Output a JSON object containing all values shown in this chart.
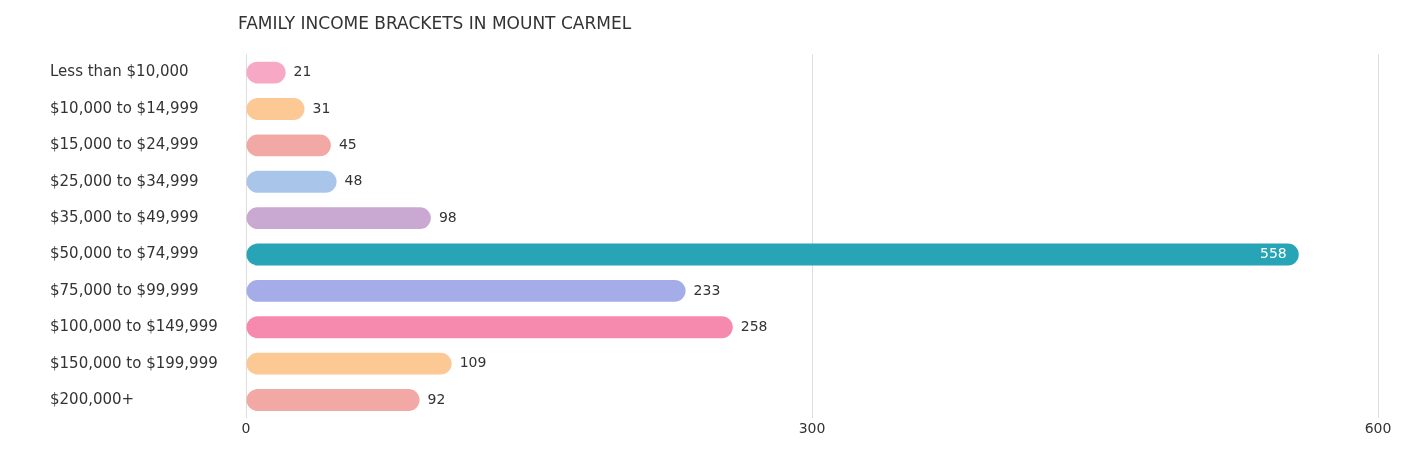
{
  "chart_data": {
    "type": "bar",
    "title": "FAMILY INCOME BRACKETS IN MOUNT CARMEL",
    "orientation": "horizontal",
    "categories": [
      "Less than $10,000",
      "$10,000 to $14,999",
      "$15,000 to $24,999",
      "$25,000 to $34,999",
      "$35,000 to $49,999",
      "$50,000 to $74,999",
      "$75,000 to $99,999",
      "$100,000 to $149,999",
      "$150,000 to $199,999",
      "$200,000+"
    ],
    "values": [
      21,
      31,
      45,
      48,
      98,
      558,
      233,
      258,
      109,
      92
    ],
    "colors": [
      "#f7a8c4",
      "#fcc994",
      "#f2a9a5",
      "#a9c6ea",
      "#c9a9d1",
      "#27a4b5",
      "#a5ade8",
      "#f58aae",
      "#fcc994",
      "#f2a9a5"
    ],
    "xlim": [
      0,
      600
    ],
    "xticks": [
      0,
      300,
      600
    ],
    "grid": "x",
    "data_labels": true,
    "legend": false
  }
}
